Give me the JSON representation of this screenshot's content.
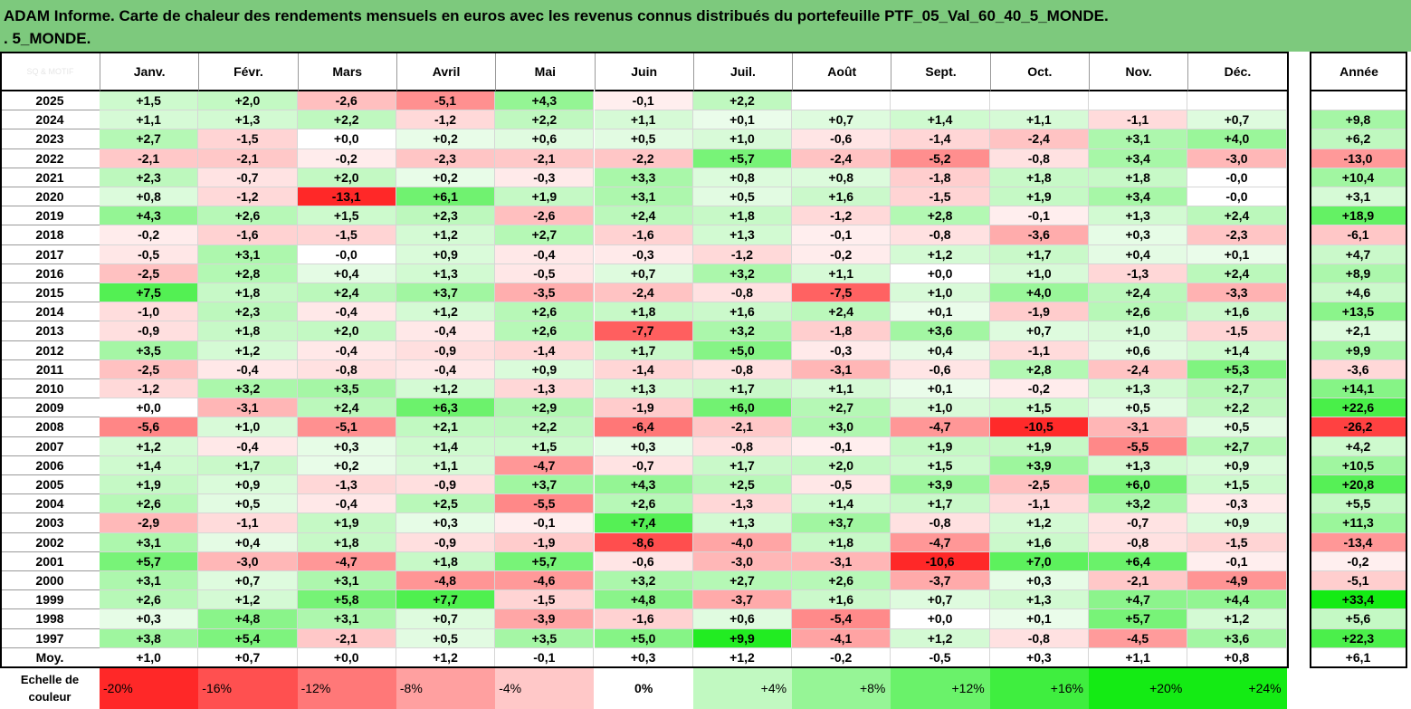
{
  "title": {
    "line1": "ADAM Informe. Carte de chaleur des rendements mensuels en euros avec les revenus connus distribués du portefeuille PTF_05_Val_60_40_5_MONDE.",
    "line2": ". 5_MONDE."
  },
  "watermark": "SQ & MOTIF",
  "scale_label": "Echelle de couleur",
  "colors": {
    "title_bg": "#7dc97d",
    "neg_max": "#ff0000",
    "pos_max": "#00dd00",
    "neutral": "#ffffff"
  },
  "chart_data": {
    "type": "heatmap",
    "title": "ADAM Informe. Carte de chaleur des rendements mensuels en euros avec les revenus connus distribués du portefeuille PTF_05_Val_60_40_5_MONDE.",
    "columns": [
      "Janv.",
      "Févr.",
      "Mars",
      "Avril",
      "Mai",
      "Juin",
      "Juil.",
      "Août",
      "Sept.",
      "Oct.",
      "Nov.",
      "Déc."
    ],
    "annual_header": "Année",
    "rows": [
      {
        "year": "2025",
        "months": [
          "+1,5",
          "+2,0",
          "-2,6",
          "-5,1",
          "+4,3",
          "-0,1",
          "+2,2",
          "",
          "",
          "",
          "",
          ""
        ],
        "annual": ""
      },
      {
        "year": "2024",
        "months": [
          "+1,1",
          "+1,3",
          "+2,2",
          "-1,2",
          "+2,2",
          "+1,1",
          "+0,1",
          "+0,7",
          "+1,4",
          "+1,1",
          "-1,1",
          "+0,7"
        ],
        "annual": "+9,8"
      },
      {
        "year": "2023",
        "months": [
          "+2,7",
          "-1,5",
          "+0,0",
          "+0,2",
          "+0,6",
          "+0,5",
          "+1,0",
          "-0,6",
          "-1,4",
          "-2,4",
          "+3,1",
          "+4,0"
        ],
        "annual": "+6,2"
      },
      {
        "year": "2022",
        "months": [
          "-2,1",
          "-2,1",
          "-0,2",
          "-2,3",
          "-2,1",
          "-2,2",
          "+5,7",
          "-2,4",
          "-5,2",
          "-0,8",
          "+3,4",
          "-3,0"
        ],
        "annual": "-13,0"
      },
      {
        "year": "2021",
        "months": [
          "+2,3",
          "-0,7",
          "+2,0",
          "+0,2",
          "-0,3",
          "+3,3",
          "+0,8",
          "+0,8",
          "-1,8",
          "+1,8",
          "+1,8",
          "-0,0"
        ],
        "annual": "+10,4"
      },
      {
        "year": "2020",
        "months": [
          "+0,8",
          "-1,2",
          "-13,1",
          "+6,1",
          "+1,9",
          "+3,1",
          "+0,5",
          "+1,6",
          "-1,5",
          "+1,9",
          "+3,4",
          "-0,0"
        ],
        "annual": "+3,1"
      },
      {
        "year": "2019",
        "months": [
          "+4,3",
          "+2,6",
          "+1,5",
          "+2,3",
          "-2,6",
          "+2,4",
          "+1,8",
          "-1,2",
          "+2,8",
          "-0,1",
          "+1,3",
          "+2,4"
        ],
        "annual": "+18,9"
      },
      {
        "year": "2018",
        "months": [
          "-0,2",
          "-1,6",
          "-1,5",
          "+1,2",
          "+2,7",
          "-1,6",
          "+1,3",
          "-0,1",
          "-0,8",
          "-3,6",
          "+0,3",
          "-2,3"
        ],
        "annual": "-6,1"
      },
      {
        "year": "2017",
        "months": [
          "-0,5",
          "+3,1",
          "-0,0",
          "+0,9",
          "-0,4",
          "-0,3",
          "-1,2",
          "-0,2",
          "+1,2",
          "+1,7",
          "+0,4",
          "+0,1"
        ],
        "annual": "+4,7"
      },
      {
        "year": "2016",
        "months": [
          "-2,5",
          "+2,8",
          "+0,4",
          "+1,3",
          "-0,5",
          "+0,7",
          "+3,2",
          "+1,1",
          "+0,0",
          "+1,0",
          "-1,3",
          "+2,4"
        ],
        "annual": "+8,9"
      },
      {
        "year": "2015",
        "months": [
          "+7,5",
          "+1,8",
          "+2,4",
          "+3,7",
          "-3,5",
          "-2,4",
          "-0,8",
          "-7,5",
          "+1,0",
          "+4,0",
          "+2,4",
          "-3,3"
        ],
        "annual": "+4,6"
      },
      {
        "year": "2014",
        "months": [
          "-1,0",
          "+2,3",
          "-0,4",
          "+1,2",
          "+2,6",
          "+1,8",
          "+1,6",
          "+2,4",
          "+0,1",
          "-1,9",
          "+2,6",
          "+1,6"
        ],
        "annual": "+13,5"
      },
      {
        "year": "2013",
        "months": [
          "-0,9",
          "+1,8",
          "+2,0",
          "-0,4",
          "+2,6",
          "-7,7",
          "+3,2",
          "-1,8",
          "+3,6",
          "+0,7",
          "+1,0",
          "-1,5"
        ],
        "annual": "+2,1"
      },
      {
        "year": "2012",
        "months": [
          "+3,5",
          "+1,2",
          "-0,4",
          "-0,9",
          "-1,4",
          "+1,7",
          "+5,0",
          "-0,3",
          "+0,4",
          "-1,1",
          "+0,6",
          "+1,4"
        ],
        "annual": "+9,9"
      },
      {
        "year": "2011",
        "months": [
          "-2,5",
          "-0,4",
          "-0,8",
          "-0,4",
          "+0,9",
          "-1,4",
          "-0,8",
          "-3,1",
          "-0,6",
          "+2,8",
          "-2,4",
          "+5,3"
        ],
        "annual": "-3,6"
      },
      {
        "year": "2010",
        "months": [
          "-1,2",
          "+3,2",
          "+3,5",
          "+1,2",
          "-1,3",
          "+1,3",
          "+1,7",
          "+1,1",
          "+0,1",
          "-0,2",
          "+1,3",
          "+2,7"
        ],
        "annual": "+14,1"
      },
      {
        "year": "2009",
        "months": [
          "+0,0",
          "-3,1",
          "+2,4",
          "+6,3",
          "+2,9",
          "-1,9",
          "+6,0",
          "+2,7",
          "+1,0",
          "+1,5",
          "+0,5",
          "+2,2"
        ],
        "annual": "+22,6"
      },
      {
        "year": "2008",
        "months": [
          "-5,6",
          "+1,0",
          "-5,1",
          "+2,1",
          "+2,2",
          "-6,4",
          "-2,1",
          "+3,0",
          "-4,7",
          "-10,5",
          "-3,1",
          "+0,5"
        ],
        "annual": "-26,2"
      },
      {
        "year": "2007",
        "months": [
          "+1,2",
          "-0,4",
          "+0,3",
          "+1,4",
          "+1,5",
          "+0,3",
          "-0,8",
          "-0,1",
          "+1,9",
          "+1,9",
          "-5,5",
          "+2,7"
        ],
        "annual": "+4,2"
      },
      {
        "year": "2006",
        "months": [
          "+1,4",
          "+1,7",
          "+0,2",
          "+1,1",
          "-4,7",
          "-0,7",
          "+1,7",
          "+2,0",
          "+1,5",
          "+3,9",
          "+1,3",
          "+0,9"
        ],
        "annual": "+10,5"
      },
      {
        "year": "2005",
        "months": [
          "+1,9",
          "+0,9",
          "-1,3",
          "-0,9",
          "+3,7",
          "+4,3",
          "+2,5",
          "-0,5",
          "+3,9",
          "-2,5",
          "+6,0",
          "+1,5"
        ],
        "annual": "+20,8"
      },
      {
        "year": "2004",
        "months": [
          "+2,6",
          "+0,5",
          "-0,4",
          "+2,5",
          "-5,5",
          "+2,6",
          "-1,3",
          "+1,4",
          "+1,7",
          "-1,1",
          "+3,2",
          "-0,3"
        ],
        "annual": "+5,5"
      },
      {
        "year": "2003",
        "months": [
          "-2,9",
          "-1,1",
          "+1,9",
          "+0,3",
          "-0,1",
          "+7,4",
          "+1,3",
          "+3,7",
          "-0,8",
          "+1,2",
          "-0,7",
          "+0,9"
        ],
        "annual": "+11,3"
      },
      {
        "year": "2002",
        "months": [
          "+3,1",
          "+0,4",
          "+1,8",
          "-0,9",
          "-1,9",
          "-8,6",
          "-4,0",
          "+1,8",
          "-4,7",
          "+1,6",
          "-0,8",
          "-1,5"
        ],
        "annual": "-13,4"
      },
      {
        "year": "2001",
        "months": [
          "+5,7",
          "-3,0",
          "-4,7",
          "+1,8",
          "+5,7",
          "-0,6",
          "-3,0",
          "-3,1",
          "-10,6",
          "+7,0",
          "+6,4",
          "-0,1"
        ],
        "annual": "-0,2"
      },
      {
        "year": "2000",
        "months": [
          "+3,1",
          "+0,7",
          "+3,1",
          "-4,8",
          "-4,6",
          "+3,2",
          "+2,7",
          "+2,6",
          "-3,7",
          "+0,3",
          "-2,1",
          "-4,9"
        ],
        "annual": "-5,1"
      },
      {
        "year": "1999",
        "months": [
          "+2,6",
          "+1,2",
          "+5,8",
          "+7,7",
          "-1,5",
          "+4,8",
          "-3,7",
          "+1,6",
          "+0,7",
          "+1,3",
          "+4,7",
          "+4,4"
        ],
        "annual": "+33,4"
      },
      {
        "year": "1998",
        "months": [
          "+0,3",
          "+4,8",
          "+3,1",
          "+0,7",
          "-3,9",
          "-1,6",
          "+0,6",
          "-5,4",
          "+0,0",
          "+0,1",
          "+5,7",
          "+1,2"
        ],
        "annual": "+5,6"
      },
      {
        "year": "1997",
        "months": [
          "+3,8",
          "+5,4",
          "-2,1",
          "+0,5",
          "+3,5",
          "+5,0",
          "+9,9",
          "-4,1",
          "+1,2",
          "-0,8",
          "-4,5",
          "+3,6"
        ],
        "annual": "+22,3"
      }
    ],
    "average": {
      "label": "Moy.",
      "months": [
        "+1,0",
        "+0,7",
        "+0,0",
        "+1,2",
        "-0,1",
        "+0,3",
        "+1,2",
        "-0,2",
        "-0,5",
        "+0,3",
        "+1,1",
        "+0,8"
      ],
      "annual": "+6,1"
    },
    "color_scale": [
      "-20%",
      "-16%",
      "-12%",
      "-8%",
      "-4%",
      "0%",
      "+4%",
      "+8%",
      "+12%",
      "+16%",
      "+20%",
      "+24%"
    ]
  }
}
